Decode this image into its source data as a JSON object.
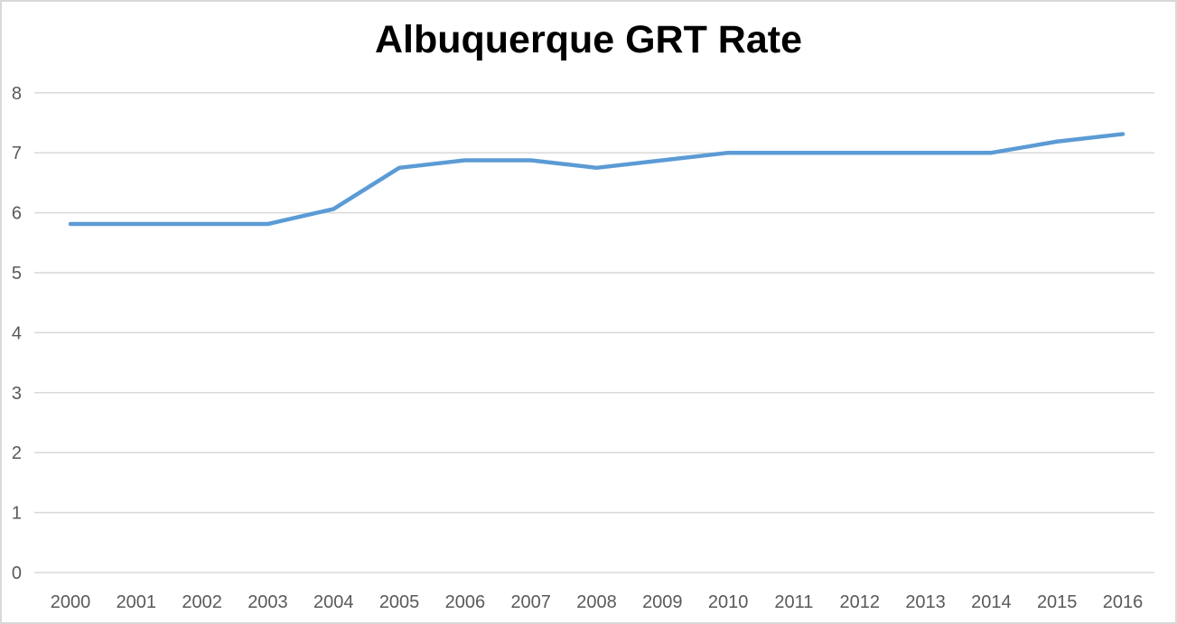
{
  "chart_data": {
    "type": "line",
    "title": "Albuquerque GRT Rate",
    "x": [
      2000,
      2001,
      2002,
      2003,
      2004,
      2005,
      2006,
      2007,
      2008,
      2009,
      2010,
      2011,
      2012,
      2013,
      2014,
      2015,
      2016
    ],
    "series": [
      {
        "name": "GRT Rate",
        "values": [
          5.8125,
          5.8125,
          5.8125,
          5.8125,
          6.0625,
          6.75,
          6.875,
          6.875,
          6.75,
          6.875,
          7.0,
          7.0,
          7.0,
          7.0,
          7.0,
          7.1875,
          7.3125
        ]
      }
    ],
    "xlabel": "",
    "ylabel": "",
    "ylim": [
      0,
      8
    ],
    "yticks": [
      0,
      1,
      2,
      3,
      4,
      5,
      6,
      7,
      8
    ],
    "grid": "horizontal-only",
    "legend_position": "none",
    "colors": {
      "line": "#5b9bd5",
      "gridline": "#d9d9d9",
      "tick_label": "#595959",
      "title": "#000000",
      "canvas_border": "#d9d9d9",
      "background": "#ffffff"
    }
  }
}
